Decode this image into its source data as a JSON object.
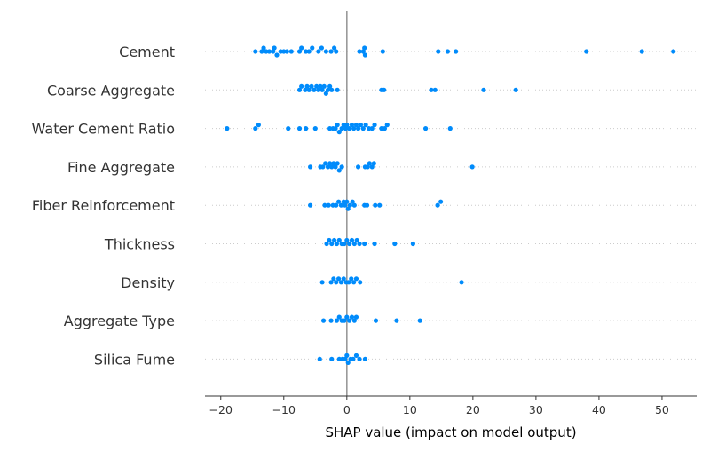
{
  "chart_data": {
    "type": "scatter",
    "title": "",
    "xlabel": "SHAP value (impact on model output)",
    "ylabel": "",
    "xlim": [
      -22.5,
      55.5
    ],
    "xticks": [
      -20,
      -10,
      0,
      10,
      20,
      30,
      40,
      50
    ],
    "grid": "dotted row guides",
    "colors": {
      "points": "#008bfb",
      "zero_line": "#999999",
      "axis": "#333333",
      "row_guide": "#cccccc"
    },
    "series": [
      {
        "name": "Cement",
        "values": [
          -14.5,
          -13.5,
          -13.2,
          -12.8,
          -12.3,
          -11.7,
          -11.5,
          -11.1,
          -10.5,
          -10.0,
          -9.5,
          -8.8,
          -7.5,
          -7.2,
          -6.5,
          -6.0,
          -5.5,
          -4.5,
          -4.0,
          -3.3,
          -2.5,
          -2.0,
          -1.7,
          2.0,
          2.6,
          2.8,
          2.9,
          5.7,
          14.5,
          16.0,
          17.3,
          38.0,
          46.8,
          51.8
        ]
      },
      {
        "name": "Coarse Aggregate",
        "values": [
          -7.5,
          -7.2,
          -6.6,
          -6.3,
          -6.0,
          -5.6,
          -5.2,
          -4.8,
          -4.5,
          -4.2,
          -3.9,
          -3.6,
          -3.3,
          -3.0,
          -2.7,
          -2.4,
          -1.5,
          5.5,
          5.9,
          13.4,
          14.0,
          21.7,
          26.8
        ]
      },
      {
        "name": "Water Cement Ratio",
        "values": [
          -19.0,
          -14.5,
          -14.0,
          -9.3,
          -7.5,
          -6.5,
          -5.0,
          -2.7,
          -2.2,
          -1.8,
          -1.5,
          -1.2,
          -0.8,
          -0.5,
          -0.2,
          0.0,
          0.4,
          0.8,
          1.1,
          1.5,
          1.8,
          2.2,
          2.6,
          3.0,
          3.5,
          4.0,
          4.4,
          5.5,
          6.0,
          6.4,
          12.5,
          16.4
        ]
      },
      {
        "name": "Fine Aggregate",
        "values": [
          -5.8,
          -4.2,
          -3.8,
          -3.4,
          -3.0,
          -2.7,
          -2.4,
          -2.1,
          -1.8,
          -1.5,
          -1.2,
          -0.8,
          1.8,
          2.9,
          3.3,
          3.6,
          4.0,
          4.3,
          19.9
        ]
      },
      {
        "name": "Fiber Reinforcement",
        "values": [
          -5.8,
          -3.5,
          -2.9,
          -2.2,
          -1.7,
          -1.3,
          -0.9,
          -0.5,
          -0.3,
          0.0,
          0.2,
          0.5,
          0.9,
          1.2,
          2.8,
          3.2,
          4.5,
          5.2,
          14.4,
          14.9
        ]
      },
      {
        "name": "Thickness",
        "values": [
          -3.2,
          -2.8,
          -2.4,
          -2.0,
          -1.6,
          -1.2,
          -0.8,
          -0.4,
          0.0,
          0.4,
          0.8,
          1.2,
          1.6,
          2.0,
          2.8,
          4.4,
          7.6,
          10.5
        ]
      },
      {
        "name": "Density",
        "values": [
          -3.9,
          -2.5,
          -2.1,
          -1.7,
          -1.3,
          -0.9,
          -0.5,
          -0.1,
          0.3,
          0.7,
          1.1,
          1.5,
          2.1,
          18.2
        ]
      },
      {
        "name": "Aggregate Type",
        "values": [
          -3.7,
          -2.5,
          -1.6,
          -1.2,
          -0.8,
          -0.4,
          0.0,
          0.4,
          0.8,
          1.2,
          1.5,
          4.6,
          7.9,
          11.6
        ]
      },
      {
        "name": "Silica Fume",
        "values": [
          -4.3,
          -2.4,
          -1.2,
          -0.7,
          -0.3,
          0.0,
          0.2,
          0.6,
          1.0,
          1.5,
          2.0,
          2.9
        ]
      }
    ]
  }
}
